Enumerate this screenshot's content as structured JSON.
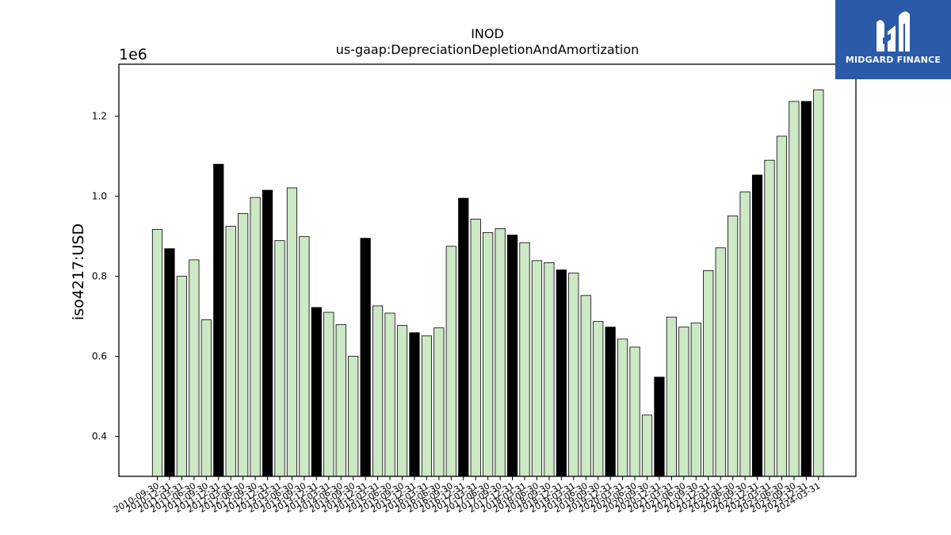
{
  "chart_data": {
    "type": "bar",
    "title": "INOD",
    "subtitle": "us-gaap:DepreciationDepletionAndAmortization",
    "ylabel": "iso4217:USD",
    "xlabel": "",
    "y_offset_label": "1e6",
    "ylim": [
      0.3,
      1.33
    ],
    "yticks": [
      "0.4",
      "0.6",
      "0.8",
      "1.0",
      "1.2"
    ],
    "ytick_values": [
      0.4,
      0.6,
      0.8,
      1.0,
      1.2
    ],
    "grid": false,
    "colors": {
      "light": "#cce8c5",
      "dark": "#000000",
      "edge": "#000000"
    },
    "categories": [
      "2010-09-30",
      "2010-12-31",
      "2011-03-31",
      "2011-06-30",
      "2011-09-30",
      "2011-12-31",
      "2012-03-31",
      "2012-06-30",
      "2012-09-30",
      "2012-12-31",
      "2013-03-31",
      "2013-06-30",
      "2013-09-30",
      "2013-12-31",
      "2014-03-31",
      "2014-06-30",
      "2014-09-30",
      "2014-12-31",
      "2015-03-31",
      "2015-06-30",
      "2015-09-30",
      "2015-12-31",
      "2016-03-31",
      "2016-06-30",
      "2016-09-30",
      "2016-12-31",
      "2017-03-31",
      "2017-06-30",
      "2017-09-30",
      "2017-12-31",
      "2018-03-31",
      "2018-06-30",
      "2018-09-30",
      "2018-12-31",
      "2019-03-31",
      "2019-06-30",
      "2019-09-30",
      "2019-12-31",
      "2020-03-31",
      "2020-06-30",
      "2020-09-30",
      "2020-12-31",
      "2021-03-31",
      "2021-06-30",
      "2021-09-30",
      "2021-12-31",
      "2022-03-31",
      "2022-06-30",
      "2022-09-30",
      "2022-12-31",
      "2023-03-31",
      "2023-06-30",
      "2023-09-30",
      "2023-12-31",
      "2024-03-31"
    ],
    "values": [
      0.917,
      0.869,
      0.8,
      0.841,
      0.691,
      1.08,
      0.925,
      0.957,
      0.997,
      1.015,
      0.889,
      1.021,
      0.899,
      0.722,
      0.71,
      0.679,
      0.6,
      0.895,
      0.726,
      0.708,
      0.677,
      0.659,
      0.651,
      0.671,
      0.875,
      0.995,
      0.943,
      0.909,
      0.919,
      0.903,
      0.884,
      0.839,
      0.834,
      0.816,
      0.808,
      0.752,
      0.687,
      0.673,
      0.643,
      0.623,
      0.453,
      0.548,
      0.698,
      0.673,
      0.683,
      0.814,
      0.871,
      0.951,
      1.011,
      1.053,
      1.09,
      1.15,
      1.237,
      1.237,
      1.266
    ],
    "highlight": [
      false,
      true,
      false,
      false,
      false,
      true,
      false,
      false,
      false,
      true,
      false,
      false,
      false,
      true,
      false,
      false,
      false,
      true,
      false,
      false,
      false,
      true,
      false,
      false,
      false,
      true,
      false,
      false,
      false,
      true,
      false,
      false,
      false,
      true,
      false,
      false,
      false,
      true,
      false,
      false,
      false,
      true,
      false,
      false,
      false,
      false,
      false,
      false,
      false,
      true,
      false,
      false,
      false,
      true,
      false
    ]
  },
  "brand": {
    "name": "MIDGARD FINANCE",
    "color": "#2a5aa8"
  }
}
